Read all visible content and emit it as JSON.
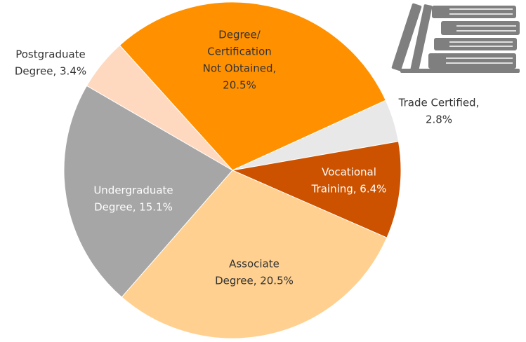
{
  "chart_data": {
    "type": "pie",
    "labels": [
      [
        "Degree/",
        "Certification",
        "Not Obtained,",
        "20.5%"
      ],
      [
        "Trade Certified,",
        "2.8%"
      ],
      [
        "Vocational",
        "Training, 6.4%"
      ],
      [
        "Associate",
        "Degree, 20.5%"
      ],
      [
        "Undergraduate",
        "Degree, 15.1%"
      ],
      [
        "Postgraduate",
        "Degree, 3.4%"
      ]
    ],
    "values": [
      20.5,
      2.8,
      6.4,
      20.5,
      15.1,
      3.4
    ],
    "colors": [
      "#ff9100",
      "#e8e8e8",
      "#cc5200",
      "#ffd08f",
      "#a6a6a6",
      "#ffd9bf"
    ]
  }
}
